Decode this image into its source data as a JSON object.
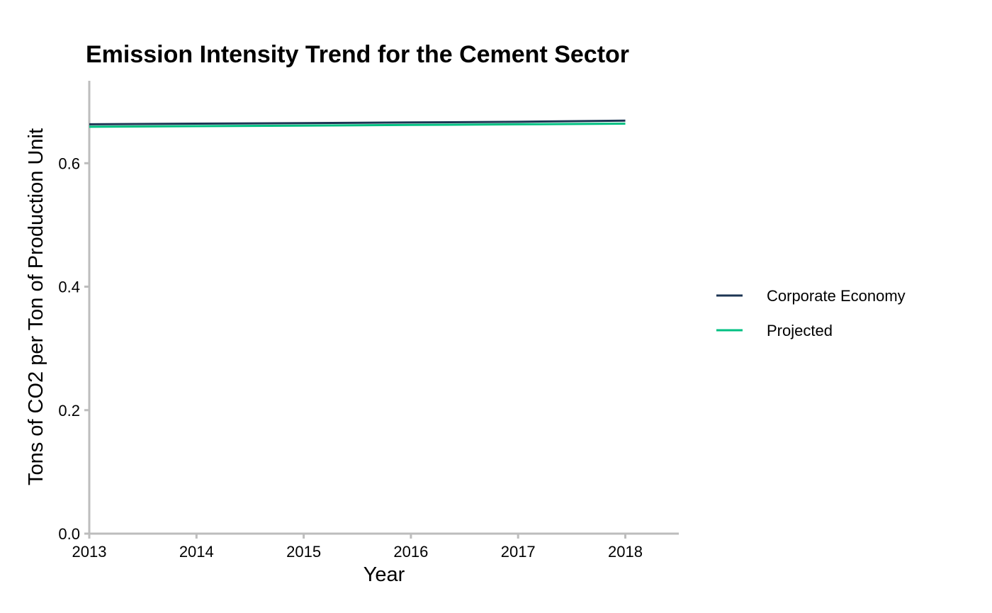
{
  "chart_data": {
    "type": "line",
    "title": "Emission Intensity Trend for the Cement Sector",
    "xlabel": "Year",
    "ylabel": "Tons of CO2 per Ton of Production Unit",
    "x": [
      2013,
      2014,
      2015,
      2016,
      2017,
      2018
    ],
    "x_tick_labels": [
      "2013",
      "2014",
      "2015",
      "2016",
      "2017",
      "2018"
    ],
    "y_tick_labels": [
      "0.0",
      "0.2",
      "0.4",
      "0.6"
    ],
    "y_ticks": [
      0.0,
      0.2,
      0.4,
      0.6
    ],
    "xlim": [
      2013,
      2018.5
    ],
    "ylim": [
      0,
      0.7335
    ],
    "grid": false,
    "legend_position": "right",
    "series": [
      {
        "name": "Corporate Economy",
        "color": "#1c3553",
        "values": [
          0.663,
          0.664,
          0.665,
          0.666,
          0.667,
          0.669
        ]
      },
      {
        "name": "Projected",
        "color": "#00c082",
        "values": [
          0.659,
          0.66,
          0.661,
          0.662,
          0.663,
          0.664
        ]
      }
    ]
  }
}
